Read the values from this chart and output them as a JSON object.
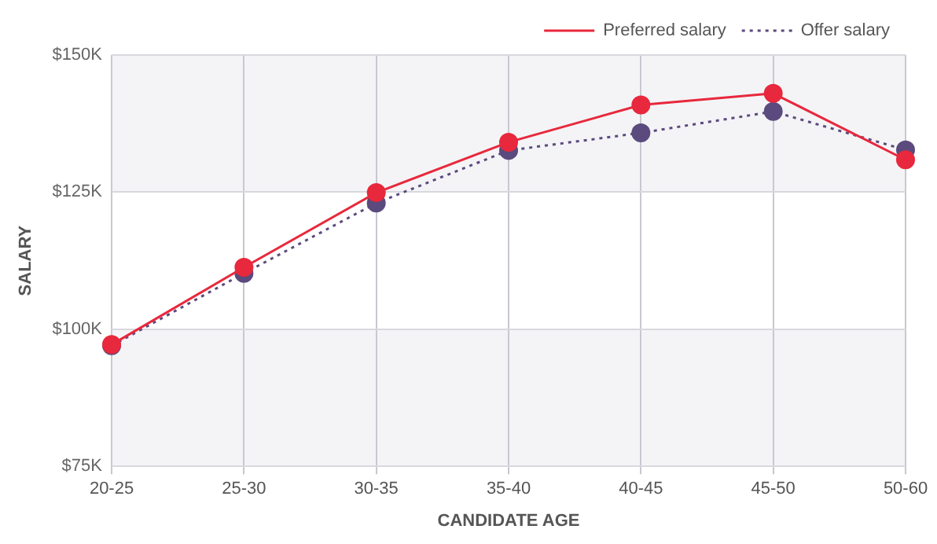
{
  "chart_data": {
    "type": "line",
    "xlabel": "CANDIDATE AGE",
    "ylabel": "SALARY",
    "categories": [
      "20-25",
      "25-30",
      "30-35",
      "35-40",
      "40-45",
      "45-50",
      "50-60"
    ],
    "series": [
      {
        "name": "Preferred salary",
        "color": "#e8283c",
        "line_style": "solid",
        "values": [
          97.2,
          111.3,
          124.9,
          134.1,
          140.9,
          143,
          130.9
        ]
      },
      {
        "name": "Offer salary",
        "color": "#5b4a7d",
        "line_style": "dotted",
        "values": [
          97,
          110.2,
          123,
          132.6,
          135.8,
          139.7,
          132.7
        ]
      }
    ],
    "ylim": [
      75,
      150
    ],
    "yticks": [
      {
        "value": 75,
        "label": "$75K"
      },
      {
        "value": 100,
        "label": "$100K"
      },
      {
        "value": 125,
        "label": "$125K"
      },
      {
        "value": 150,
        "label": "$150K"
      }
    ],
    "grid": true,
    "legend": "top right",
    "marker": "circle"
  }
}
